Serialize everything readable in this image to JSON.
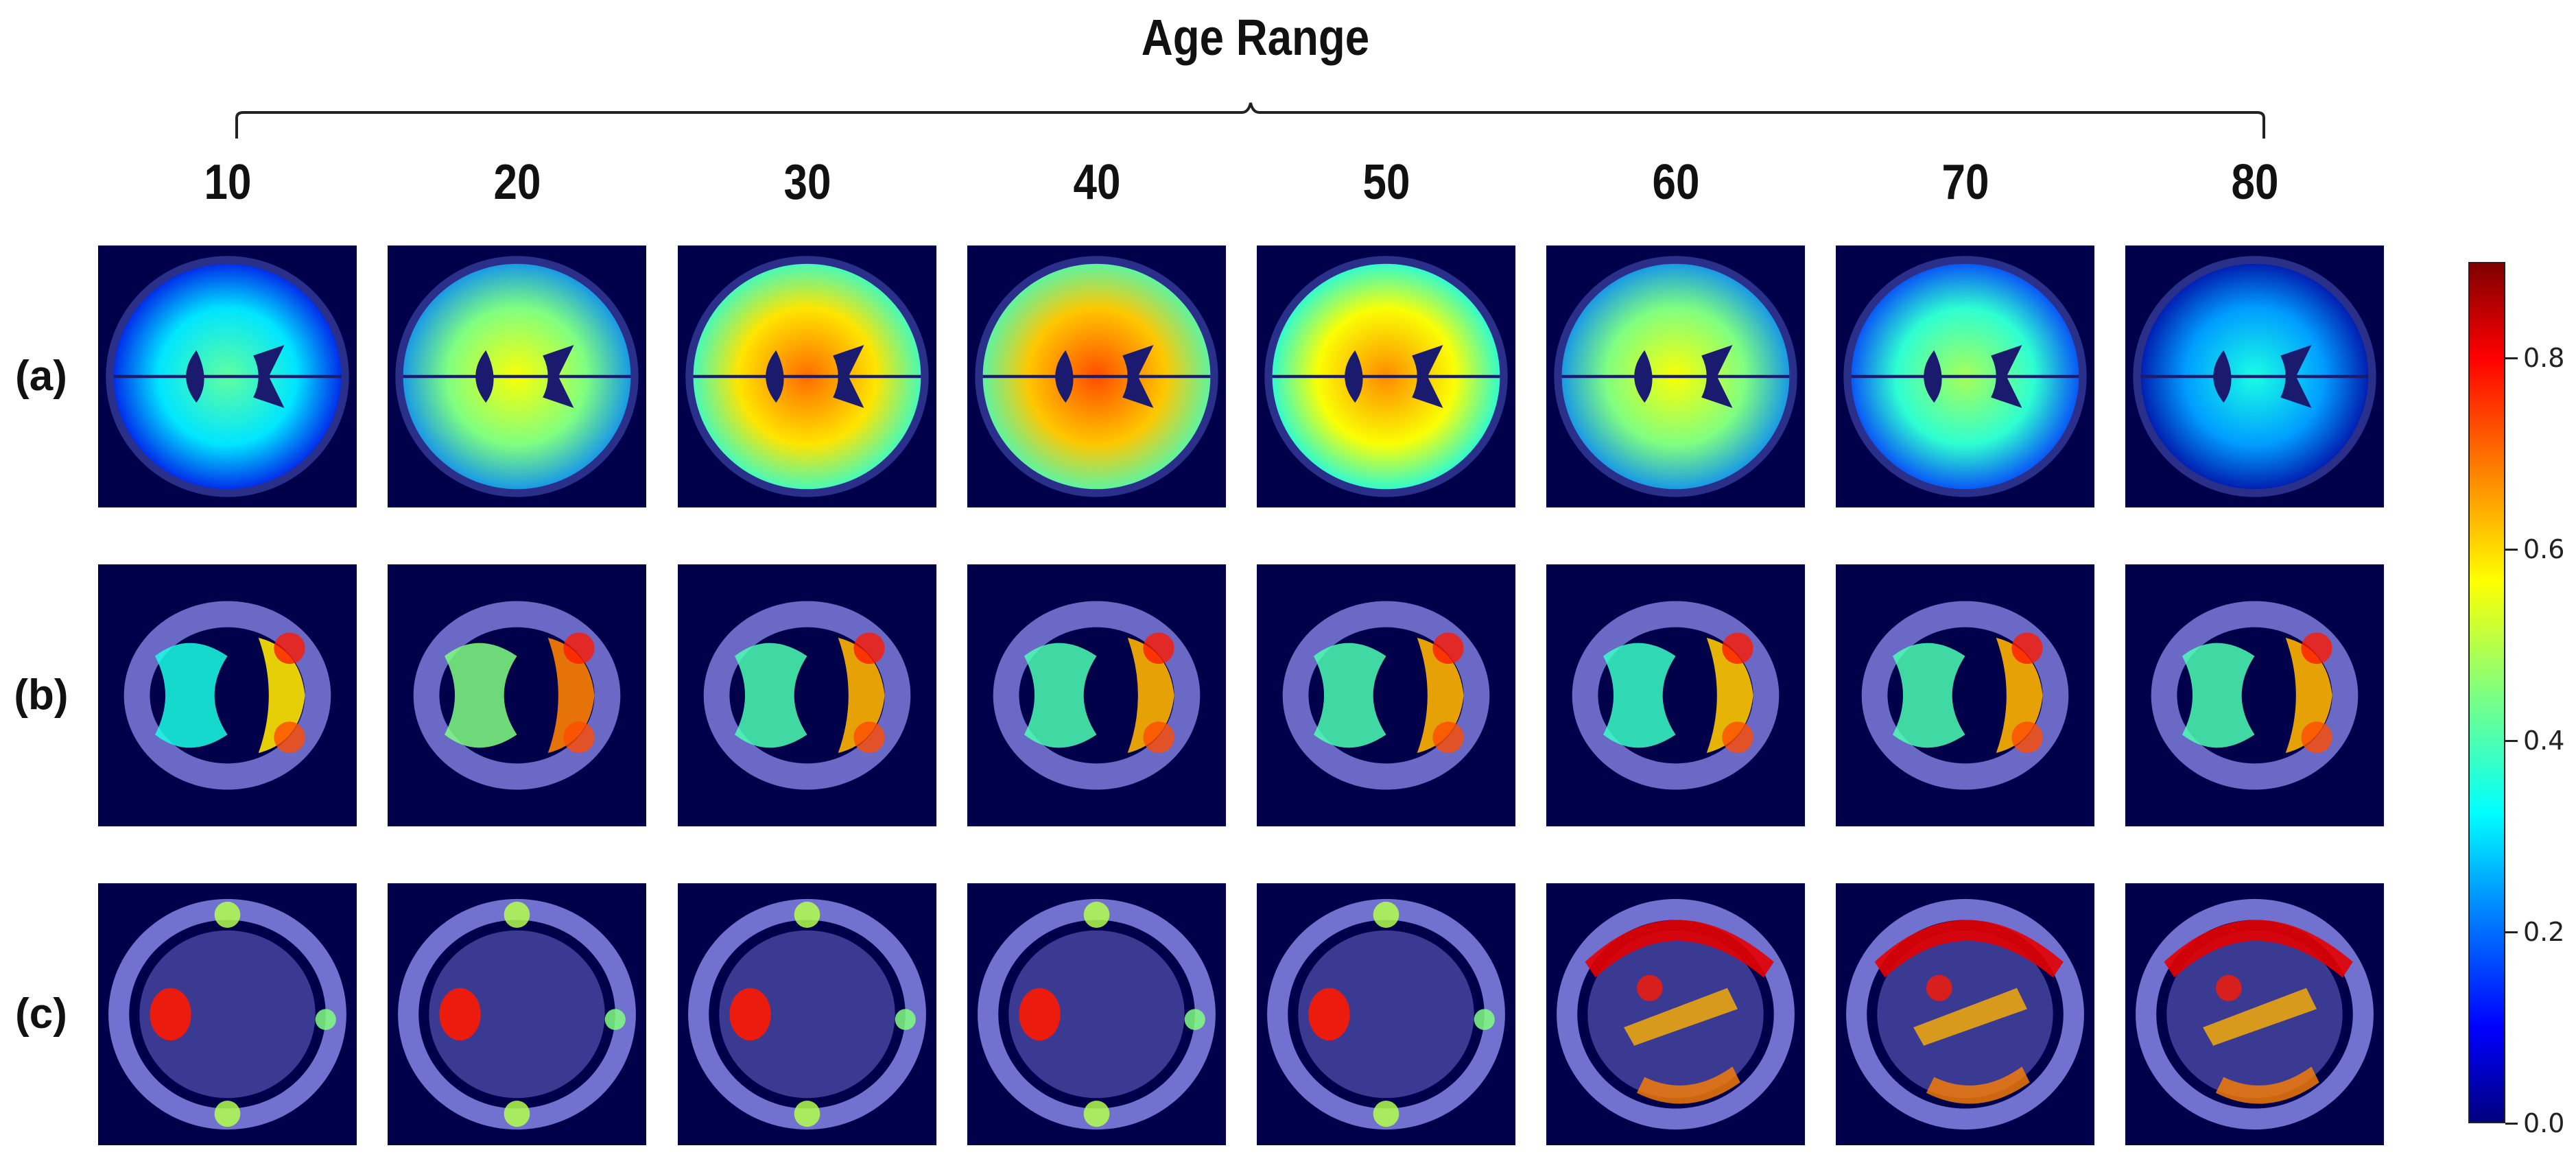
{
  "title": "Age Range",
  "ages": [
    "10",
    "20",
    "30",
    "40",
    "50",
    "60",
    "70",
    "80"
  ],
  "rows": [
    "(a)",
    "(b)",
    "(c)"
  ],
  "colorbar": {
    "ticks": [
      "0.0",
      "0.2",
      "0.4",
      "0.6",
      "0.8"
    ],
    "tick_values": [
      0.0,
      0.2,
      0.4,
      0.6,
      0.8
    ],
    "range": [
      0.0,
      0.9
    ],
    "colormap": "jet"
  },
  "panel_intensity": {
    "a": [
      0.35,
      0.5,
      0.65,
      0.68,
      0.62,
      0.5,
      0.42,
      0.28
    ],
    "b": [
      0.55,
      0.65,
      0.6,
      0.6,
      0.6,
      0.58,
      0.6,
      0.6
    ],
    "c": [
      0.7,
      0.7,
      0.75,
      0.75,
      0.75,
      0.8,
      0.85,
      0.8
    ]
  }
}
